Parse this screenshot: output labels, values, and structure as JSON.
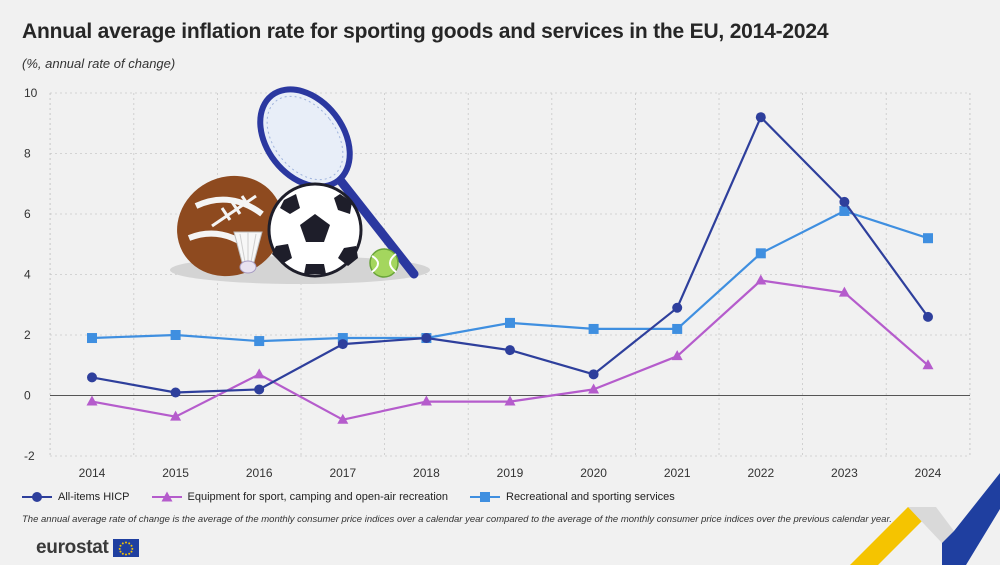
{
  "chart_data": {
    "type": "line",
    "title": "Annual average inflation rate for sporting goods and services in the EU, 2014-2024",
    "subtitle": "(%, annual rate of change)",
    "xlabel": "",
    "ylabel": "",
    "x": [
      "2014",
      "2015",
      "2016",
      "2017",
      "2018",
      "2019",
      "2020",
      "2021",
      "2022",
      "2023",
      "2024"
    ],
    "ylim": [
      -2,
      10
    ],
    "yticks": [
      -2,
      0,
      2,
      4,
      6,
      8,
      10
    ],
    "grid": true,
    "legend_position": "bottom",
    "series": [
      {
        "name": "All-items HICP",
        "color": "#2e3f9c",
        "marker": "circle",
        "values": [
          0.6,
          0.1,
          0.2,
          1.7,
          1.9,
          1.5,
          0.7,
          2.9,
          9.2,
          6.4,
          2.6
        ]
      },
      {
        "name": "Equipment for sport, camping and open-air recreation",
        "color": "#b55ccc",
        "marker": "triangle",
        "values": [
          -0.2,
          -0.7,
          0.7,
          -0.8,
          -0.2,
          -0.2,
          0.2,
          1.3,
          3.8,
          3.4,
          1.0
        ]
      },
      {
        "name": "Recreational and sporting services",
        "color": "#3f8fe0",
        "marker": "square",
        "values": [
          1.9,
          2.0,
          1.8,
          1.9,
          1.9,
          2.4,
          2.2,
          2.2,
          4.7,
          6.1,
          5.2
        ]
      }
    ]
  },
  "footnote": "The annual average rate of change is the average of the monthly consumer price indices over a calendar year compared to the average of the monthly consumer price indices over the previous calendar year.",
  "brand": {
    "name": "eurostat"
  },
  "colors": {
    "background": "#f1f1f1",
    "grid": "#c9c9c9",
    "axis": "#555555",
    "eu_blue": "#1f3fa0",
    "eu_yellow": "#f5c400"
  }
}
